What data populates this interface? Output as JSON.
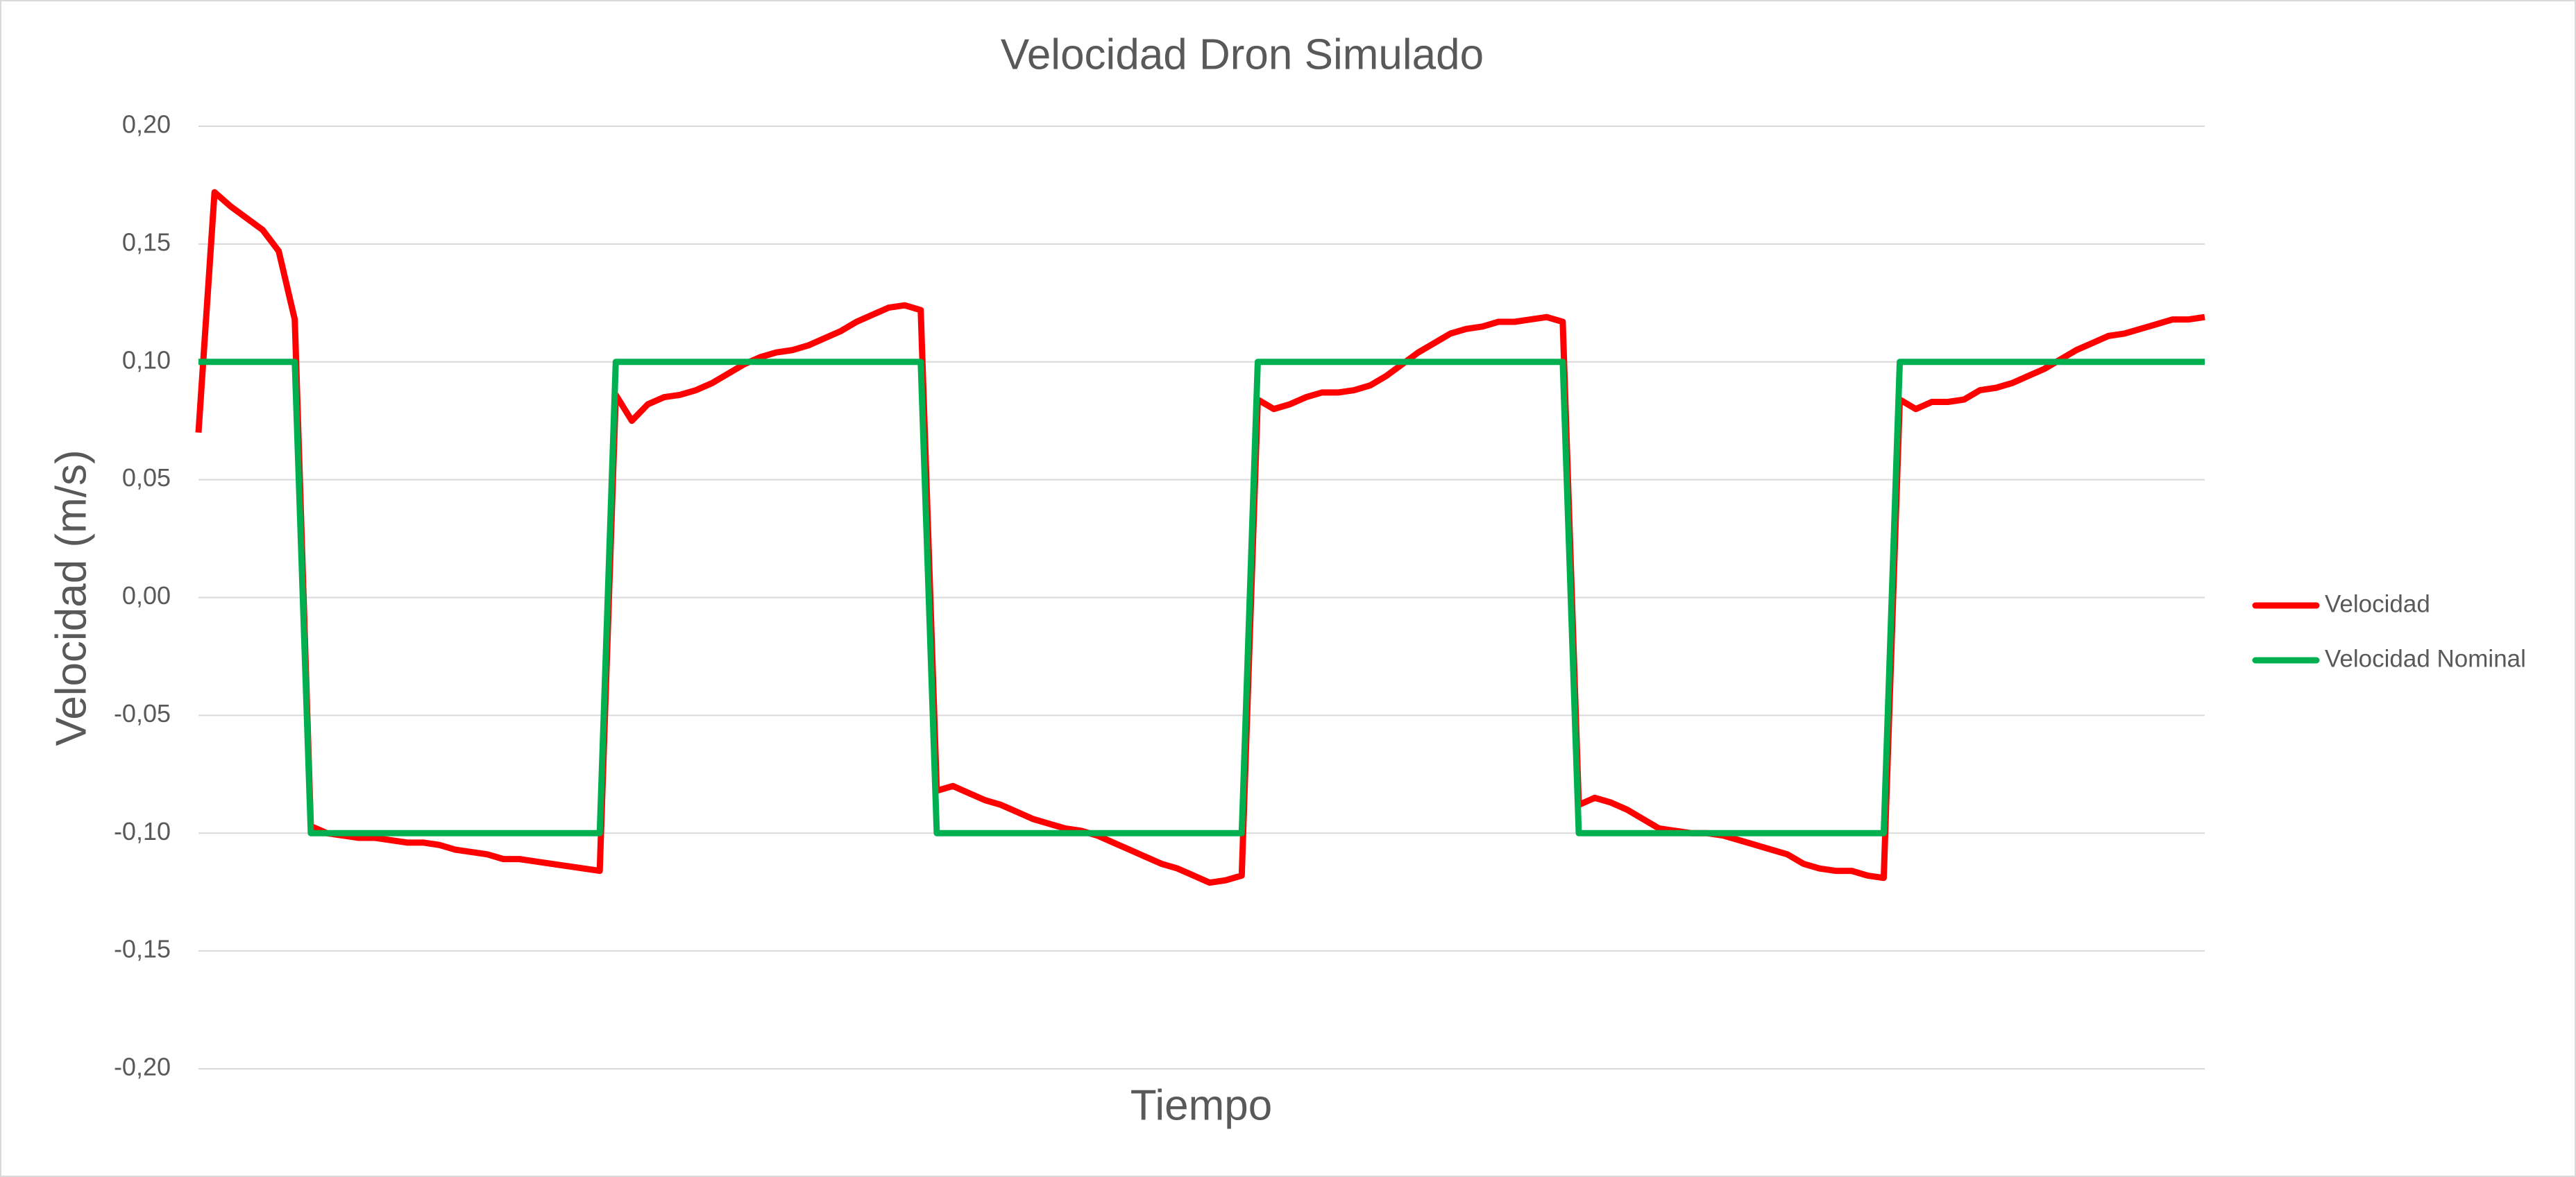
{
  "chart_data": {
    "type": "line",
    "title": "Velocidad Dron Simulado",
    "x_label": "Tiempo",
    "y_label": "Velocidad  (m/s)",
    "ylim": [
      -0.2,
      0.2
    ],
    "yticks": [
      {
        "value": 0.2,
        "label": "0,20"
      },
      {
        "value": 0.15,
        "label": "0,15"
      },
      {
        "value": 0.1,
        "label": "0,10"
      },
      {
        "value": 0.05,
        "label": "0,05"
      },
      {
        "value": 0,
        "label": "0,00"
      },
      {
        "value": -0.05,
        "label": "-0,05"
      },
      {
        "value": -0.1,
        "label": "-0,10"
      },
      {
        "value": -0.15,
        "label": "-0,15"
      },
      {
        "value": -0.2,
        "label": "-0,20"
      }
    ],
    "grid": true,
    "legend": "right",
    "series": [
      {
        "name": "Velocidad",
        "color": "#ff0000",
        "values": [
          0.07,
          0.172,
          0.166,
          0.161,
          0.156,
          0.147,
          0.118,
          -0.097,
          -0.1,
          -0.101,
          -0.102,
          -0.102,
          -0.103,
          -0.104,
          -0.104,
          -0.105,
          -0.107,
          -0.108,
          -0.109,
          -0.111,
          -0.111,
          -0.112,
          -0.113,
          -0.114,
          -0.115,
          -0.116,
          0.086,
          0.075,
          0.082,
          0.085,
          0.086,
          0.088,
          0.091,
          0.095,
          0.099,
          0.102,
          0.104,
          0.105,
          0.107,
          0.11,
          0.113,
          0.117,
          0.12,
          0.123,
          0.124,
          0.122,
          -0.082,
          -0.08,
          -0.083,
          -0.086,
          -0.088,
          -0.091,
          -0.094,
          -0.096,
          -0.098,
          -0.099,
          -0.101,
          -0.104,
          -0.107,
          -0.11,
          -0.113,
          -0.115,
          -0.118,
          -0.121,
          -0.12,
          -0.118,
          0.084,
          0.08,
          0.082,
          0.085,
          0.087,
          0.087,
          0.088,
          0.09,
          0.094,
          0.099,
          0.104,
          0.108,
          0.112,
          0.114,
          0.115,
          0.117,
          0.117,
          0.118,
          0.119,
          0.117,
          -0.088,
          -0.085,
          -0.087,
          -0.09,
          -0.094,
          -0.098,
          -0.099,
          -0.1,
          -0.1,
          -0.101,
          -0.103,
          -0.105,
          -0.107,
          -0.109,
          -0.113,
          -0.115,
          -0.116,
          -0.116,
          -0.118,
          -0.119,
          0.084,
          0.08,
          0.083,
          0.083,
          0.084,
          0.088,
          0.089,
          0.091,
          0.094,
          0.097,
          0.101,
          0.105,
          0.108,
          0.111,
          0.112,
          0.114,
          0.116,
          0.118,
          0.118,
          0.119
        ]
      },
      {
        "name": "Velocidad Nominal",
        "color": "#00b050",
        "values": [
          0.1,
          0.1,
          0.1,
          0.1,
          0.1,
          0.1,
          0.1,
          -0.1,
          -0.1,
          -0.1,
          -0.1,
          -0.1,
          -0.1,
          -0.1,
          -0.1,
          -0.1,
          -0.1,
          -0.1,
          -0.1,
          -0.1,
          -0.1,
          -0.1,
          -0.1,
          -0.1,
          -0.1,
          -0.1,
          0.1,
          0.1,
          0.1,
          0.1,
          0.1,
          0.1,
          0.1,
          0.1,
          0.1,
          0.1,
          0.1,
          0.1,
          0.1,
          0.1,
          0.1,
          0.1,
          0.1,
          0.1,
          0.1,
          0.1,
          -0.1,
          -0.1,
          -0.1,
          -0.1,
          -0.1,
          -0.1,
          -0.1,
          -0.1,
          -0.1,
          -0.1,
          -0.1,
          -0.1,
          -0.1,
          -0.1,
          -0.1,
          -0.1,
          -0.1,
          -0.1,
          -0.1,
          -0.1,
          0.1,
          0.1,
          0.1,
          0.1,
          0.1,
          0.1,
          0.1,
          0.1,
          0.1,
          0.1,
          0.1,
          0.1,
          0.1,
          0.1,
          0.1,
          0.1,
          0.1,
          0.1,
          0.1,
          0.1,
          -0.1,
          -0.1,
          -0.1,
          -0.1,
          -0.1,
          -0.1,
          -0.1,
          -0.1,
          -0.1,
          -0.1,
          -0.1,
          -0.1,
          -0.1,
          -0.1,
          -0.1,
          -0.1,
          -0.1,
          -0.1,
          -0.1,
          -0.1,
          0.1,
          0.1,
          0.1,
          0.1,
          0.1,
          0.1,
          0.1,
          0.1,
          0.1,
          0.1,
          0.1,
          0.1,
          0.1,
          0.1,
          0.1,
          0.1,
          0.1,
          0.1,
          0.1,
          0.1
        ]
      }
    ]
  }
}
